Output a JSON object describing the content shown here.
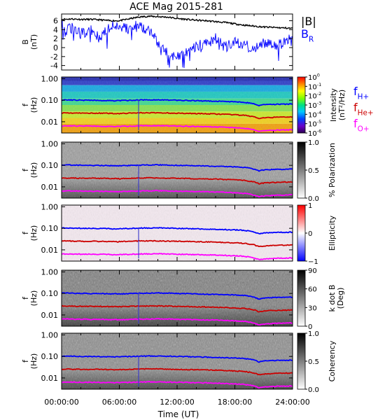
{
  "title": "ACE Mag 2015-281",
  "chart_data": [
    {
      "type": "line",
      "panel": "magnetic-field",
      "ylabel": "B",
      "yunit": "(nT)",
      "ylim": [
        -5,
        7.5
      ],
      "yticks": [
        -4,
        -2,
        0,
        2,
        4,
        6
      ],
      "xlim_hours": [
        0,
        24
      ],
      "series": [
        {
          "name": "|B|",
          "color": "#000000",
          "x_hours": [
            0,
            1,
            2,
            3,
            4,
            5,
            6,
            7,
            8,
            9,
            10,
            11,
            12,
            13,
            14,
            15,
            16,
            17,
            18,
            19,
            20,
            21,
            22,
            23,
            24
          ],
          "values": [
            6.3,
            6.4,
            6.3,
            6.3,
            6.2,
            6.0,
            6.0,
            6.4,
            6.8,
            7.0,
            6.9,
            6.8,
            6.5,
            6.3,
            6.1,
            6.0,
            5.8,
            5.6,
            5.3,
            5.0,
            4.8,
            4.6,
            4.5,
            4.4,
            4.3
          ]
        },
        {
          "name": "B",
          "subscript": "R",
          "color": "#0000ff",
          "x_hours": [
            0,
            1,
            2,
            3,
            4,
            5,
            6,
            7,
            8,
            9,
            10,
            11,
            12,
            13,
            14,
            15,
            16,
            17,
            18,
            19,
            20,
            21,
            22,
            23,
            24
          ],
          "values": [
            5.0,
            4.5,
            3.0,
            4.0,
            2.0,
            4.5,
            5.0,
            4.0,
            5.0,
            4.0,
            1.0,
            -1.5,
            -2.0,
            -1.0,
            0.5,
            1.0,
            2.0,
            0.0,
            1.0,
            0.5,
            0.0,
            1.0,
            0.5,
            1.0,
            2.5
          ]
        }
      ]
    },
    {
      "type": "heatmap",
      "panel": "intensity",
      "ylabel": "f",
      "yunit": "(Hz)",
      "colorbar": {
        "label": "Intensity",
        "unit": "(nT²/Hz)",
        "scale": "log",
        "ticks": [
          {
            "base": "10",
            "exp": "0"
          },
          {
            "base": "10",
            "exp": "-1"
          },
          {
            "base": "10",
            "exp": "-2"
          },
          {
            "base": "10",
            "exp": "-3"
          },
          {
            "base": "10",
            "exp": "-4"
          },
          {
            "base": "10",
            "exp": "-5"
          },
          {
            "base": "10",
            "exp": "-6"
          }
        ]
      },
      "legend": [
        {
          "name": "f",
          "subscript": "H+",
          "color": "#0000ff"
        },
        {
          "name": "f",
          "subscript": "He+",
          "color": "#cc0000"
        },
        {
          "name": "f",
          "subscript": "O+",
          "color": "#ff00ff"
        }
      ]
    },
    {
      "type": "heatmap",
      "panel": "polarization",
      "ylabel": "f",
      "yunit": "(Hz)",
      "colorbar": {
        "label": "% Polarization",
        "unit": "",
        "ticks": [
          "1.0",
          "0.5",
          "0.0"
        ]
      }
    },
    {
      "type": "heatmap",
      "panel": "ellipticity",
      "ylabel": "f",
      "yunit": "(Hz)",
      "colorbar": {
        "label": "Ellipticity",
        "unit": "",
        "ticks": [
          "1",
          "0",
          "−1"
        ]
      }
    },
    {
      "type": "heatmap",
      "panel": "k-dot-b",
      "ylabel": "f",
      "yunit": "(Hz)",
      "colorbar": {
        "label": "k dot B",
        "unit": "(Deg)",
        "ticks": [
          "90",
          "60",
          "30",
          "0"
        ]
      }
    },
    {
      "type": "heatmap",
      "panel": "coherency",
      "ylabel": "f",
      "yunit": "(Hz)",
      "colorbar": {
        "label": "Coherency",
        "unit": "",
        "ticks": [
          "1.0",
          "0.5",
          "0.0"
        ]
      }
    }
  ],
  "freq_axis": {
    "ylim_hz": [
      0.003,
      1.2
    ],
    "scale": "log",
    "ticks": [
      {
        "value": 1.0,
        "label": "1.00"
      },
      {
        "value": 0.1,
        "label": "0.10"
      },
      {
        "value": 0.01,
        "label": "0.01"
      }
    ]
  },
  "gyro_lines": {
    "x_hours": [
      0,
      2,
      4,
      6,
      8,
      10,
      12,
      14,
      16,
      18,
      19,
      20,
      20.5,
      21,
      22,
      24
    ],
    "H+": [
      0.105,
      0.1,
      0.098,
      0.095,
      0.102,
      0.105,
      0.1,
      0.095,
      0.09,
      0.085,
      0.08,
      0.068,
      0.055,
      0.062,
      0.064,
      0.066
    ],
    "He+": [
      0.026,
      0.025,
      0.025,
      0.024,
      0.026,
      0.026,
      0.025,
      0.024,
      0.023,
      0.021,
      0.02,
      0.017,
      0.014,
      0.015,
      0.016,
      0.017
    ],
    "O+": [
      0.0065,
      0.0063,
      0.0062,
      0.006,
      0.0064,
      0.0066,
      0.0063,
      0.006,
      0.0058,
      0.0053,
      0.005,
      0.0042,
      0.0035,
      0.0038,
      0.004,
      0.0042
    ]
  },
  "xaxis": {
    "label": "Time (UT)",
    "ticks": [
      "00:00:00",
      "06:00:00",
      "12:00:00",
      "18:00:00",
      "24:00:00"
    ]
  },
  "colors": {
    "H+": "#0000ff",
    "He+": "#cc0000",
    "O+": "#ff00ff",
    "B_R": "#0000ff",
    "B_mag": "#000000"
  }
}
